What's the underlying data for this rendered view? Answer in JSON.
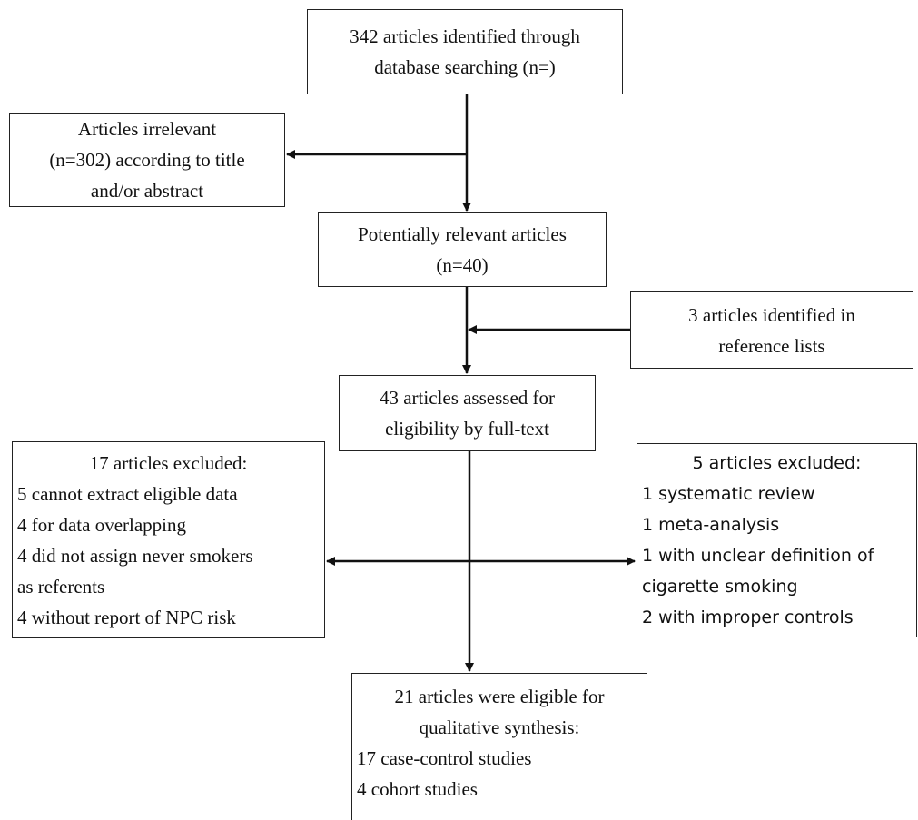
{
  "nodes": [
    {
      "lines": [
        "342 articles identified through",
        "database searching (n=)"
      ]
    },
    {
      "lines": [
        "Articles irrelevant",
        "(n=302) according to title",
        "and/or abstract"
      ]
    },
    {
      "lines": [
        "Potentially relevant articles",
        "(n=40)"
      ]
    },
    {
      "lines": [
        "3 articles identified in",
        "reference lists"
      ]
    },
    {
      "lines": [
        "43 articles assessed for",
        "eligibility by full-text"
      ]
    },
    {
      "heading": [
        "17 articles excluded:"
      ],
      "items": [
        "5 cannot extract eligible data",
        "4 for data overlapping",
        "4 did not assign never smokers",
        "as referents",
        "4 without report of NPC risk"
      ]
    },
    {
      "heading": [
        "5 articles excluded:"
      ],
      "items": [
        "1 systematic review",
        "1 meta-analysis",
        "1 with unclear definition of",
        "cigarette smoking",
        "2 with improper controls"
      ]
    },
    {
      "heading": [
        "21 articles were eligible for",
        "qualitative synthesis:"
      ],
      "items": [
        "17 case-control studies",
        "4 cohort studies"
      ]
    }
  ]
}
